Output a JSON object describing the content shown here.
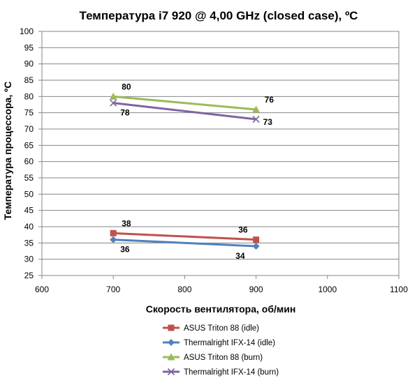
{
  "chart_data": {
    "type": "scatter",
    "title": "Температура i7 920 @ 4,00 GHz (closed case), ºC",
    "xlabel": "Скорость вентилятора, об/мин",
    "ylabel": "Температура процессора, ºC",
    "xlim": [
      600,
      1100
    ],
    "ylim": [
      25,
      100
    ],
    "x_ticks": [
      "600",
      "700",
      "800",
      "900",
      "1000",
      "1100"
    ],
    "y_ticks": [
      "25",
      "30",
      "35",
      "40",
      "45",
      "50",
      "55",
      "60",
      "65",
      "70",
      "75",
      "80",
      "85",
      "90",
      "95",
      "100"
    ],
    "grid": "horizontal",
    "legend_position": "bottom",
    "series": [
      {
        "name": "ASUS Triton 88 (idle)",
        "color": "#c0504d",
        "marker": "square",
        "x": [
          700,
          900
        ],
        "y": [
          38,
          36
        ],
        "labels": [
          "38",
          "36"
        ],
        "label_pos": [
          "above-right",
          "above-left"
        ]
      },
      {
        "name": "Thermalright IFX-14 (idle)",
        "color": "#4f81bd",
        "marker": "diamond",
        "x": [
          700,
          900
        ],
        "y": [
          36,
          34
        ],
        "labels": [
          "36",
          "34"
        ],
        "label_pos": [
          "below-right",
          "below-left"
        ]
      },
      {
        "name": "ASUS Triton 88 (burn)",
        "color": "#9bbb59",
        "marker": "triangle",
        "x": [
          700,
          900
        ],
        "y": [
          80,
          76
        ],
        "labels": [
          "80",
          "76"
        ],
        "label_pos": [
          "above-right",
          "above-right"
        ]
      },
      {
        "name": "Thermalright IFX-14 (burn)",
        "color": "#8064a2",
        "marker": "x",
        "x": [
          700,
          900
        ],
        "y": [
          78,
          73
        ],
        "labels": [
          "78",
          "73"
        ],
        "label_pos": [
          "below-right",
          "right"
        ]
      }
    ]
  }
}
